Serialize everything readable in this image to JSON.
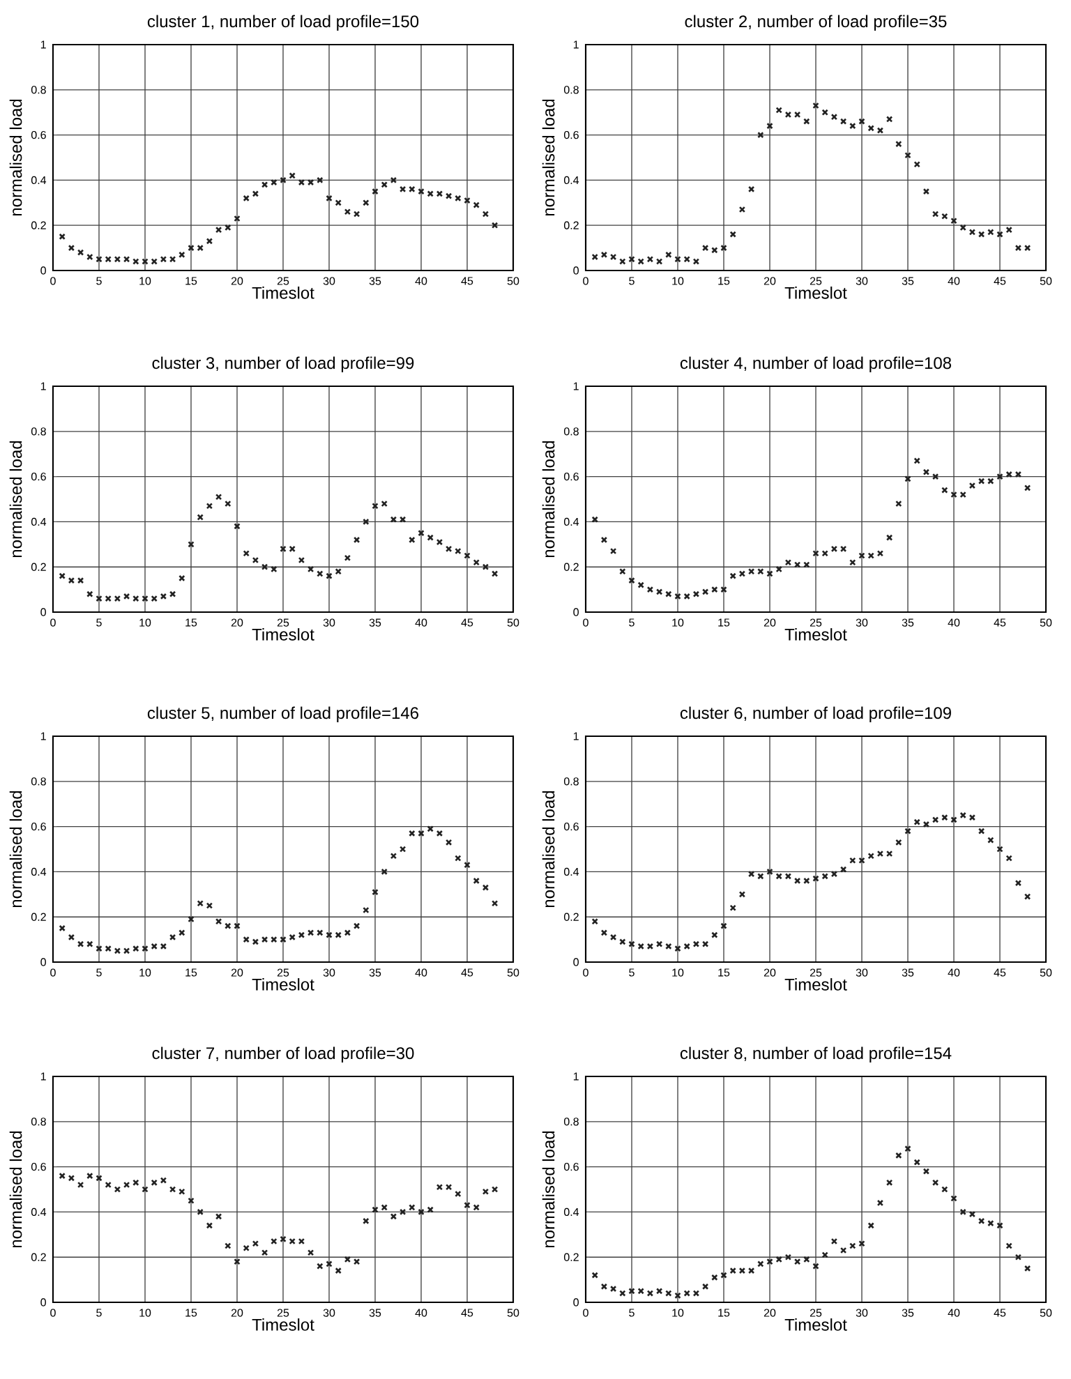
{
  "chart_data": [
    {
      "type": "scatter",
      "title": "cluster 1, number of load profile=150",
      "xlabel": "Timeslot",
      "ylabel": "normalised load",
      "xlim": [
        0,
        50
      ],
      "ylim": [
        0,
        1
      ],
      "xticks": [
        0,
        5,
        10,
        15,
        20,
        25,
        30,
        35,
        40,
        45,
        50
      ],
      "yticks": [
        0,
        0.2,
        0.4,
        0.6,
        0.8,
        1
      ],
      "grid": true,
      "marker": "cross",
      "x": [
        1,
        2,
        3,
        4,
        5,
        6,
        7,
        8,
        9,
        10,
        11,
        12,
        13,
        14,
        15,
        16,
        17,
        18,
        19,
        20,
        21,
        22,
        23,
        24,
        25,
        26,
        27,
        28,
        29,
        30,
        31,
        32,
        33,
        34,
        35,
        36,
        37,
        38,
        39,
        40,
        41,
        42,
        43,
        44,
        45,
        46,
        47,
        48
      ],
      "series": [
        {
          "color": "#222222",
          "values": [
            0.15,
            0.1,
            0.08,
            0.06,
            0.05,
            0.05,
            0.05,
            0.05,
            0.04,
            0.04,
            0.04,
            0.05,
            0.05,
            0.07,
            0.1,
            0.1,
            0.13,
            0.18,
            0.19,
            0.23,
            0.32,
            0.34,
            0.38,
            0.39,
            0.4,
            0.42,
            0.39,
            0.39,
            0.4,
            0.32,
            0.3,
            0.26,
            0.25,
            0.3,
            0.35,
            0.38,
            0.4,
            0.36,
            0.36,
            0.35,
            0.34,
            0.34,
            0.33,
            0.32,
            0.31,
            0.29,
            0.25,
            0.2
          ]
        }
      ]
    },
    {
      "type": "scatter",
      "title": "cluster 2, number of load profile=35",
      "xlabel": "Timeslot",
      "ylabel": "normalised load",
      "xlim": [
        0,
        50
      ],
      "ylim": [
        0,
        1
      ],
      "xticks": [
        0,
        5,
        10,
        15,
        20,
        25,
        30,
        35,
        40,
        45,
        50
      ],
      "yticks": [
        0,
        0.2,
        0.4,
        0.6,
        0.8,
        1
      ],
      "grid": true,
      "marker": "cross",
      "x": [
        1,
        2,
        3,
        4,
        5,
        6,
        7,
        8,
        9,
        10,
        11,
        12,
        13,
        14,
        15,
        16,
        17,
        18,
        19,
        20,
        21,
        22,
        23,
        24,
        25,
        26,
        27,
        28,
        29,
        30,
        31,
        32,
        33,
        34,
        35,
        36,
        37,
        38,
        39,
        40,
        41,
        42,
        43,
        44,
        45,
        46,
        47,
        48
      ],
      "series": [
        {
          "color": "#222222",
          "values": [
            0.06,
            0.07,
            0.06,
            0.04,
            0.05,
            0.04,
            0.05,
            0.04,
            0.07,
            0.05,
            0.05,
            0.04,
            0.1,
            0.09,
            0.1,
            0.16,
            0.27,
            0.36,
            0.6,
            0.64,
            0.71,
            0.69,
            0.69,
            0.66,
            0.73,
            0.7,
            0.68,
            0.66,
            0.64,
            0.66,
            0.63,
            0.62,
            0.67,
            0.56,
            0.51,
            0.47,
            0.35,
            0.25,
            0.24,
            0.22,
            0.19,
            0.17,
            0.16,
            0.17,
            0.16,
            0.18,
            0.1,
            0.1
          ]
        }
      ]
    },
    {
      "type": "scatter",
      "title": "cluster 3, number of load profile=99",
      "xlabel": "Timeslot",
      "ylabel": "normalised load",
      "xlim": [
        0,
        50
      ],
      "ylim": [
        0,
        1
      ],
      "xticks": [
        0,
        5,
        10,
        15,
        20,
        25,
        30,
        35,
        40,
        45,
        50
      ],
      "yticks": [
        0,
        0.2,
        0.4,
        0.6,
        0.8,
        1
      ],
      "grid": true,
      "marker": "cross",
      "x": [
        1,
        2,
        3,
        4,
        5,
        6,
        7,
        8,
        9,
        10,
        11,
        12,
        13,
        14,
        15,
        16,
        17,
        18,
        19,
        20,
        21,
        22,
        23,
        24,
        25,
        26,
        27,
        28,
        29,
        30,
        31,
        32,
        33,
        34,
        35,
        36,
        37,
        38,
        39,
        40,
        41,
        42,
        43,
        44,
        45,
        46,
        47,
        48
      ],
      "series": [
        {
          "color": "#222222",
          "values": [
            0.16,
            0.14,
            0.14,
            0.08,
            0.06,
            0.06,
            0.06,
            0.07,
            0.06,
            0.06,
            0.06,
            0.07,
            0.08,
            0.15,
            0.3,
            0.42,
            0.47,
            0.51,
            0.48,
            0.38,
            0.26,
            0.23,
            0.2,
            0.19,
            0.28,
            0.28,
            0.23,
            0.19,
            0.17,
            0.16,
            0.18,
            0.24,
            0.32,
            0.4,
            0.47,
            0.48,
            0.41,
            0.41,
            0.32,
            0.35,
            0.33,
            0.31,
            0.28,
            0.27,
            0.25,
            0.22,
            0.2,
            0.17
          ]
        }
      ]
    },
    {
      "type": "scatter",
      "title": "cluster 4, number of load profile=108",
      "xlabel": "Timeslot",
      "ylabel": "normalised load",
      "xlim": [
        0,
        50
      ],
      "ylim": [
        0,
        1
      ],
      "xticks": [
        0,
        5,
        10,
        15,
        20,
        25,
        30,
        35,
        40,
        45,
        50
      ],
      "yticks": [
        0,
        0.2,
        0.4,
        0.6,
        0.8,
        1
      ],
      "grid": true,
      "marker": "cross",
      "x": [
        1,
        2,
        3,
        4,
        5,
        6,
        7,
        8,
        9,
        10,
        11,
        12,
        13,
        14,
        15,
        16,
        17,
        18,
        19,
        20,
        21,
        22,
        23,
        24,
        25,
        26,
        27,
        28,
        29,
        30,
        31,
        32,
        33,
        34,
        35,
        36,
        37,
        38,
        39,
        40,
        41,
        42,
        43,
        44,
        45,
        46,
        47,
        48
      ],
      "series": [
        {
          "color": "#222222",
          "values": [
            0.41,
            0.32,
            0.27,
            0.18,
            0.14,
            0.12,
            0.1,
            0.09,
            0.08,
            0.07,
            0.07,
            0.08,
            0.09,
            0.1,
            0.1,
            0.16,
            0.17,
            0.18,
            0.18,
            0.17,
            0.19,
            0.22,
            0.21,
            0.21,
            0.26,
            0.26,
            0.28,
            0.28,
            0.22,
            0.25,
            0.25,
            0.26,
            0.33,
            0.48,
            0.59,
            0.67,
            0.62,
            0.6,
            0.54,
            0.52,
            0.52,
            0.56,
            0.58,
            0.58,
            0.6,
            0.61,
            0.61,
            0.55
          ]
        }
      ]
    },
    {
      "type": "scatter",
      "title": "cluster 5, number of load profile=146",
      "xlabel": "Timeslot",
      "ylabel": "normalised load",
      "xlim": [
        0,
        50
      ],
      "ylim": [
        0,
        1
      ],
      "xticks": [
        0,
        5,
        10,
        15,
        20,
        25,
        30,
        35,
        40,
        45,
        50
      ],
      "yticks": [
        0,
        0.2,
        0.4,
        0.6,
        0.8,
        1
      ],
      "grid": true,
      "marker": "cross",
      "x": [
        1,
        2,
        3,
        4,
        5,
        6,
        7,
        8,
        9,
        10,
        11,
        12,
        13,
        14,
        15,
        16,
        17,
        18,
        19,
        20,
        21,
        22,
        23,
        24,
        25,
        26,
        27,
        28,
        29,
        30,
        31,
        32,
        33,
        34,
        35,
        36,
        37,
        38,
        39,
        40,
        41,
        42,
        43,
        44,
        45,
        46,
        47,
        48
      ],
      "series": [
        {
          "color": "#222222",
          "values": [
            0.15,
            0.11,
            0.08,
            0.08,
            0.06,
            0.06,
            0.05,
            0.05,
            0.06,
            0.06,
            0.07,
            0.07,
            0.11,
            0.13,
            0.19,
            0.26,
            0.25,
            0.18,
            0.16,
            0.16,
            0.1,
            0.09,
            0.1,
            0.1,
            0.1,
            0.11,
            0.12,
            0.13,
            0.13,
            0.12,
            0.12,
            0.13,
            0.16,
            0.23,
            0.31,
            0.4,
            0.47,
            0.5,
            0.57,
            0.57,
            0.59,
            0.57,
            0.53,
            0.46,
            0.43,
            0.36,
            0.33,
            0.26
          ]
        }
      ]
    },
    {
      "type": "scatter",
      "title": "cluster 6, number of load profile=109",
      "xlabel": "Timeslot",
      "ylabel": "normalised load",
      "xlim": [
        0,
        50
      ],
      "ylim": [
        0,
        1
      ],
      "xticks": [
        0,
        5,
        10,
        15,
        20,
        25,
        30,
        35,
        40,
        45,
        50
      ],
      "yticks": [
        0,
        0.2,
        0.4,
        0.6,
        0.8,
        1
      ],
      "grid": true,
      "marker": "cross",
      "x": [
        1,
        2,
        3,
        4,
        5,
        6,
        7,
        8,
        9,
        10,
        11,
        12,
        13,
        14,
        15,
        16,
        17,
        18,
        19,
        20,
        21,
        22,
        23,
        24,
        25,
        26,
        27,
        28,
        29,
        30,
        31,
        32,
        33,
        34,
        35,
        36,
        37,
        38,
        39,
        40,
        41,
        42,
        43,
        44,
        45,
        46,
        47,
        48
      ],
      "series": [
        {
          "color": "#222222",
          "values": [
            0.18,
            0.13,
            0.11,
            0.09,
            0.08,
            0.07,
            0.07,
            0.08,
            0.07,
            0.06,
            0.07,
            0.08,
            0.08,
            0.12,
            0.16,
            0.24,
            0.3,
            0.39,
            0.38,
            0.4,
            0.38,
            0.38,
            0.36,
            0.36,
            0.37,
            0.38,
            0.39,
            0.41,
            0.45,
            0.45,
            0.47,
            0.48,
            0.48,
            0.53,
            0.58,
            0.62,
            0.61,
            0.63,
            0.64,
            0.63,
            0.65,
            0.64,
            0.58,
            0.54,
            0.5,
            0.46,
            0.35,
            0.29
          ]
        }
      ]
    },
    {
      "type": "scatter",
      "title": "cluster 7, number of load profile=30",
      "xlabel": "Timeslot",
      "ylabel": "normalised load",
      "xlim": [
        0,
        50
      ],
      "ylim": [
        0,
        1
      ],
      "xticks": [
        0,
        5,
        10,
        15,
        20,
        25,
        30,
        35,
        40,
        45,
        50
      ],
      "yticks": [
        0,
        0.2,
        0.4,
        0.6,
        0.8,
        1
      ],
      "grid": true,
      "marker": "cross",
      "x": [
        1,
        2,
        3,
        4,
        5,
        6,
        7,
        8,
        9,
        10,
        11,
        12,
        13,
        14,
        15,
        16,
        17,
        18,
        19,
        20,
        21,
        22,
        23,
        24,
        25,
        26,
        27,
        28,
        29,
        30,
        31,
        32,
        33,
        34,
        35,
        36,
        37,
        38,
        39,
        40,
        41,
        42,
        43,
        44,
        45,
        46,
        47,
        48
      ],
      "series": [
        {
          "color": "#222222",
          "values": [
            0.56,
            0.55,
            0.52,
            0.56,
            0.55,
            0.52,
            0.5,
            0.52,
            0.53,
            0.5,
            0.53,
            0.54,
            0.5,
            0.49,
            0.45,
            0.4,
            0.34,
            0.38,
            0.25,
            0.18,
            0.24,
            0.26,
            0.22,
            0.27,
            0.28,
            0.27,
            0.27,
            0.22,
            0.16,
            0.17,
            0.14,
            0.19,
            0.18,
            0.36,
            0.41,
            0.42,
            0.38,
            0.4,
            0.42,
            0.4,
            0.41,
            0.51,
            0.51,
            0.48,
            0.43,
            0.42,
            0.49,
            0.5
          ]
        }
      ]
    },
    {
      "type": "scatter",
      "title": "cluster 8, number of load profile=154",
      "xlabel": "Timeslot",
      "ylabel": "normalised load",
      "xlim": [
        0,
        50
      ],
      "ylim": [
        0,
        1
      ],
      "xticks": [
        0,
        5,
        10,
        15,
        20,
        25,
        30,
        35,
        40,
        45,
        50
      ],
      "yticks": [
        0,
        0.2,
        0.4,
        0.6,
        0.8,
        1
      ],
      "grid": true,
      "marker": "cross",
      "x": [
        1,
        2,
        3,
        4,
        5,
        6,
        7,
        8,
        9,
        10,
        11,
        12,
        13,
        14,
        15,
        16,
        17,
        18,
        19,
        20,
        21,
        22,
        23,
        24,
        25,
        26,
        27,
        28,
        29,
        30,
        31,
        32,
        33,
        34,
        35,
        36,
        37,
        38,
        39,
        40,
        41,
        42,
        43,
        44,
        45,
        46,
        47,
        48
      ],
      "series": [
        {
          "color": "#222222",
          "values": [
            0.12,
            0.07,
            0.06,
            0.04,
            0.05,
            0.05,
            0.04,
            0.05,
            0.04,
            0.03,
            0.04,
            0.04,
            0.07,
            0.11,
            0.12,
            0.14,
            0.14,
            0.14,
            0.17,
            0.18,
            0.19,
            0.2,
            0.18,
            0.19,
            0.16,
            0.21,
            0.27,
            0.23,
            0.25,
            0.26,
            0.34,
            0.44,
            0.53,
            0.65,
            0.68,
            0.62,
            0.58,
            0.53,
            0.5,
            0.46,
            0.4,
            0.39,
            0.36,
            0.35,
            0.34,
            0.25,
            0.2,
            0.15
          ]
        }
      ]
    }
  ]
}
